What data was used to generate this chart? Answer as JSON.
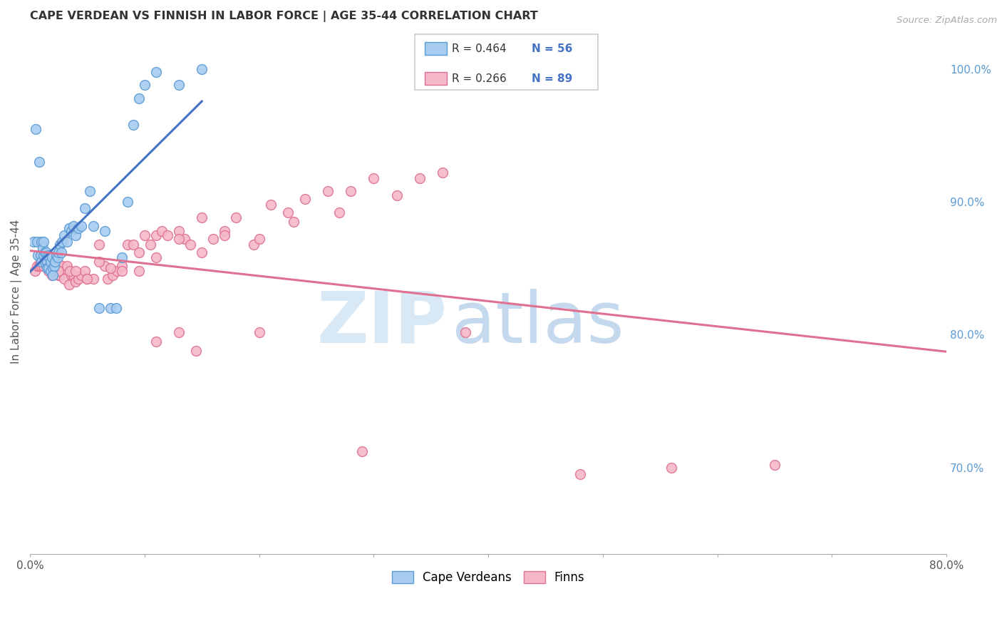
{
  "title": "CAPE VERDEAN VS FINNISH IN LABOR FORCE | AGE 35-44 CORRELATION CHART",
  "source": "Source: ZipAtlas.com",
  "ylabel": "In Labor Force | Age 35-44",
  "right_yticks": [
    "70.0%",
    "80.0%",
    "90.0%",
    "100.0%"
  ],
  "right_ytick_vals": [
    0.7,
    0.8,
    0.9,
    1.0
  ],
  "legend_blue_label": "Cape Verdeans",
  "legend_pink_label": "Finns",
  "legend_R_blue": "R = 0.464",
  "legend_N_blue": "N = 56",
  "legend_R_pink": "R = 0.266",
  "legend_N_pink": "N = 89",
  "blue_color": "#A8CCF0",
  "blue_edge_color": "#5B9BD5",
  "blue_line_color": "#4472C4",
  "pink_color": "#F4B8C8",
  "pink_edge_color": "#E07090",
  "pink_line_color": "#E07090",
  "xlim": [
    0.0,
    0.8
  ],
  "ylim": [
    0.635,
    1.03
  ],
  "xtick_vals": [
    0.0,
    0.1,
    0.2,
    0.3,
    0.4,
    0.5,
    0.6,
    0.7,
    0.8
  ],
  "blue_scatter_x": [
    0.003,
    0.005,
    0.006,
    0.007,
    0.008,
    0.009,
    0.01,
    0.01,
    0.011,
    0.012,
    0.012,
    0.013,
    0.013,
    0.014,
    0.014,
    0.015,
    0.015,
    0.016,
    0.016,
    0.017,
    0.018,
    0.018,
    0.019,
    0.02,
    0.02,
    0.021,
    0.022,
    0.023,
    0.024,
    0.025,
    0.026,
    0.027,
    0.028,
    0.03,
    0.032,
    0.034,
    0.036,
    0.038,
    0.04,
    0.042,
    0.045,
    0.048,
    0.052,
    0.055,
    0.06,
    0.065,
    0.07,
    0.075,
    0.08,
    0.085,
    0.09,
    0.095,
    0.1,
    0.11,
    0.13,
    0.15
  ],
  "blue_scatter_y": [
    0.87,
    0.955,
    0.87,
    0.86,
    0.93,
    0.86,
    0.87,
    0.855,
    0.865,
    0.87,
    0.86,
    0.862,
    0.855,
    0.856,
    0.862,
    0.855,
    0.85,
    0.86,
    0.85,
    0.858,
    0.855,
    0.848,
    0.858,
    0.85,
    0.845,
    0.852,
    0.855,
    0.86,
    0.858,
    0.862,
    0.868,
    0.862,
    0.87,
    0.875,
    0.87,
    0.88,
    0.878,
    0.882,
    0.875,
    0.88,
    0.882,
    0.895,
    0.908,
    0.882,
    0.82,
    0.878,
    0.82,
    0.82,
    0.858,
    0.9,
    0.958,
    0.978,
    0.988,
    0.998,
    0.988,
    1.0
  ],
  "pink_scatter_x": [
    0.004,
    0.006,
    0.008,
    0.009,
    0.01,
    0.011,
    0.012,
    0.013,
    0.014,
    0.015,
    0.016,
    0.017,
    0.018,
    0.019,
    0.02,
    0.021,
    0.022,
    0.023,
    0.024,
    0.025,
    0.026,
    0.027,
    0.028,
    0.03,
    0.032,
    0.034,
    0.036,
    0.038,
    0.04,
    0.042,
    0.045,
    0.048,
    0.05,
    0.055,
    0.06,
    0.065,
    0.068,
    0.072,
    0.076,
    0.08,
    0.085,
    0.09,
    0.095,
    0.1,
    0.105,
    0.11,
    0.115,
    0.12,
    0.13,
    0.135,
    0.14,
    0.15,
    0.16,
    0.17,
    0.18,
    0.195,
    0.21,
    0.225,
    0.24,
    0.26,
    0.28,
    0.3,
    0.32,
    0.34,
    0.36,
    0.025,
    0.035,
    0.04,
    0.05,
    0.06,
    0.07,
    0.08,
    0.095,
    0.11,
    0.13,
    0.15,
    0.17,
    0.2,
    0.23,
    0.27,
    0.11,
    0.13,
    0.145,
    0.2,
    0.29,
    0.38,
    0.48,
    0.56,
    0.65
  ],
  "pink_scatter_y": [
    0.848,
    0.852,
    0.852,
    0.855,
    0.852,
    0.858,
    0.852,
    0.858,
    0.852,
    0.855,
    0.848,
    0.858,
    0.852,
    0.845,
    0.852,
    0.848,
    0.848,
    0.855,
    0.852,
    0.845,
    0.845,
    0.852,
    0.852,
    0.842,
    0.852,
    0.838,
    0.845,
    0.845,
    0.84,
    0.842,
    0.845,
    0.848,
    0.842,
    0.842,
    0.868,
    0.852,
    0.842,
    0.845,
    0.848,
    0.852,
    0.868,
    0.868,
    0.862,
    0.875,
    0.868,
    0.875,
    0.878,
    0.875,
    0.878,
    0.872,
    0.868,
    0.888,
    0.872,
    0.878,
    0.888,
    0.868,
    0.898,
    0.892,
    0.902,
    0.908,
    0.908,
    0.918,
    0.905,
    0.918,
    0.922,
    0.848,
    0.848,
    0.848,
    0.842,
    0.855,
    0.85,
    0.848,
    0.848,
    0.858,
    0.872,
    0.862,
    0.875,
    0.872,
    0.885,
    0.892,
    0.795,
    0.802,
    0.788,
    0.802,
    0.712,
    0.802,
    0.695,
    0.7,
    0.702
  ]
}
